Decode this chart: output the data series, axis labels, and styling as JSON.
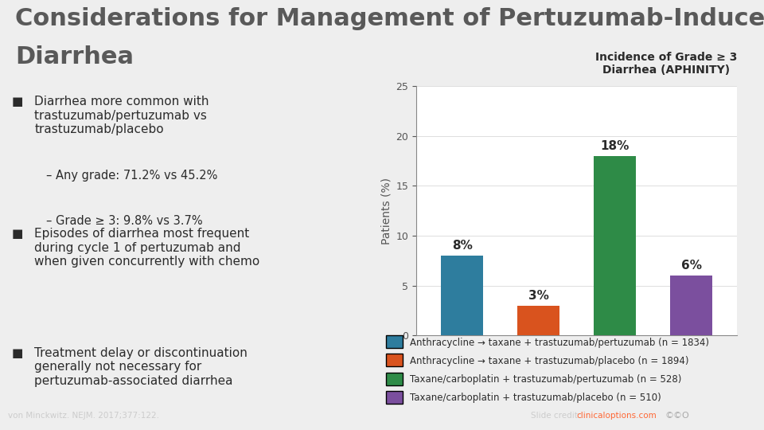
{
  "title_line1": "Considerations for Management of Pertuzumab-Induced",
  "title_line2": "Diarrhea",
  "title_color": "#595959",
  "title_fontsize": 22,
  "background_color": "#eeeeee",
  "panel_bg": "#ffffff",
  "chart_title_line1": "Incidence of Grade ≥ 3",
  "chart_title_line2": "Diarrhea (APHINITY)",
  "ylabel": "Patients (%)",
  "ylim": [
    0,
    25
  ],
  "yticks": [
    0,
    5,
    10,
    15,
    20,
    25
  ],
  "bar_values": [
    8,
    3,
    18,
    6
  ],
  "bar_labels": [
    "8%",
    "3%",
    "18%",
    "6%"
  ],
  "bar_colors": [
    "#2e7d9e",
    "#d9531e",
    "#2e8b47",
    "#7b4f9e"
  ],
  "bar_positions": [
    0,
    1,
    2,
    3
  ],
  "legend_labels": [
    "Anthracycline → taxane + trastuzumab/pertuzumab (n = 1834)",
    "Anthracycline → taxane + trastuzumab/placebo (n = 1894)",
    "Taxane/carboplatin + trastuzumab/pertuzumab (n = 528)",
    "Taxane/carboplatin + trastuzumab/placebo (n = 510)"
  ],
  "footer_left": "von Minckwitz. NEJM. 2017;377:122.",
  "footer_right_text": "Slide credit: ",
  "footer_link": "clinicaloptions.com",
  "footer_bar_color": "#7a4f7a",
  "bar_width": 0.55,
  "text_color": "#2b2b2b",
  "bullet_color": "#2b2b2b",
  "sub_bullet_color": "#2b2b2b",
  "bullet_points": [
    {
      "main": "Diarrhea more common with\ntrastuzumab/pertuzumab vs\ntrastuzumab/placebo",
      "subs": [
        "– Any grade: 71.2% vs 45.2%",
        "– Grade ≥ 3: 9.8% vs 3.7%"
      ]
    },
    {
      "main": "Episodes of diarrhea most frequent\nduring cycle 1 of pertuzumab and\nwhen given concurrently with chemo",
      "subs": []
    },
    {
      "main": "Treatment delay or discontinuation\ngenerally not necessary for\npertuzumab-associated diarrhea",
      "subs": []
    }
  ]
}
